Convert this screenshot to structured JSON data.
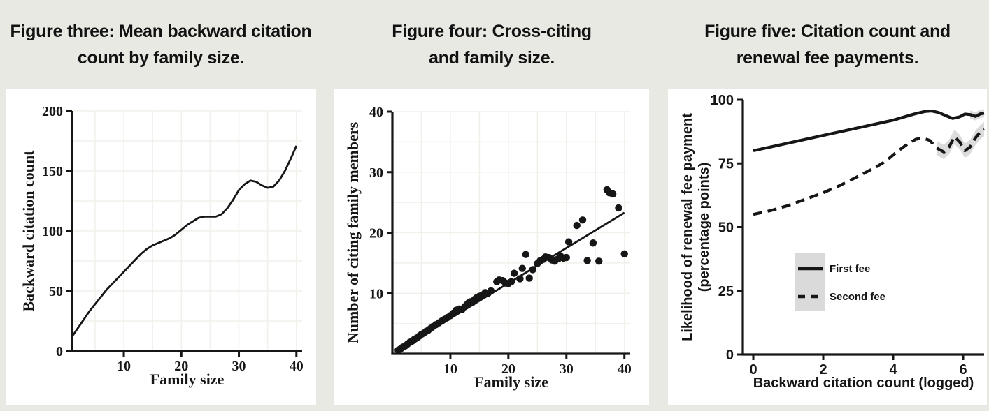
{
  "page": {
    "background_color": "#e9e9e4",
    "panel_color": "#ffffff",
    "ink_color": "#161616",
    "grid_color": "#f1f1ec",
    "band_color": "#d2d2d2",
    "legend_box_color": "#dadada"
  },
  "chart_data": [
    {
      "type": "line",
      "title": "Figure three: Mean backward citation count by family size.",
      "title_lines": [
        "Figure three: Mean backward citation",
        "count by family size."
      ],
      "xlabel": "Family size",
      "ylabel": "Backward citation count",
      "xlim": [
        1,
        41
      ],
      "ylim": [
        0,
        200
      ],
      "xticks": [
        10,
        20,
        30,
        40
      ],
      "yticks": [
        0,
        50,
        100,
        150,
        200
      ],
      "grid": "faint",
      "series": [
        {
          "name": "mean-backward-citation-curve",
          "style": "solid",
          "x": [
            1,
            2,
            3,
            4,
            5,
            6,
            7,
            8,
            9,
            10,
            11,
            12,
            13,
            14,
            15,
            16,
            17,
            18,
            19,
            20,
            21,
            22,
            23,
            24,
            25,
            26,
            27,
            28,
            29,
            30,
            31,
            32,
            33,
            34,
            35,
            36,
            37,
            38,
            39,
            40
          ],
          "y": [
            12,
            19,
            26,
            33,
            39,
            45,
            51,
            56,
            61,
            66,
            71,
            76,
            81,
            85,
            88,
            90,
            92,
            94,
            97,
            101,
            105,
            108,
            111,
            112,
            112,
            112,
            114,
            119,
            126,
            134,
            139,
            142,
            141,
            138,
            136,
            137,
            142,
            150,
            160,
            171
          ]
        }
      ]
    },
    {
      "type": "scatter",
      "title": "Figure four: Cross-citing and family size.",
      "title_lines": [
        "Figure four: Cross-citing",
        "and family size."
      ],
      "xlabel": "Family size",
      "ylabel": "Number of citing family members",
      "xlim": [
        0,
        41
      ],
      "ylim": [
        0,
        40
      ],
      "xticks": [
        10,
        20,
        30,
        40
      ],
      "yticks": [
        10,
        20,
        30,
        40
      ],
      "grid": "faint",
      "points": [
        [
          1,
          0.6
        ],
        [
          1.4,
          0.8
        ],
        [
          1.8,
          1.1
        ],
        [
          2.2,
          1.3
        ],
        [
          2.6,
          1.6
        ],
        [
          3,
          1.9
        ],
        [
          3.4,
          2.1
        ],
        [
          3.8,
          2.4
        ],
        [
          4.2,
          2.6
        ],
        [
          4.6,
          2.9
        ],
        [
          5,
          3.2
        ],
        [
          5.4,
          3.4
        ],
        [
          5.8,
          3.7
        ],
        [
          6.2,
          3.9
        ],
        [
          6.6,
          4.2
        ],
        [
          7,
          4.5
        ],
        [
          7.5,
          4.8
        ],
        [
          8,
          5.1
        ],
        [
          8.5,
          5.4
        ],
        [
          9,
          5.7
        ],
        [
          9.5,
          6
        ],
        [
          10,
          6.3
        ],
        [
          10.5,
          6.7
        ],
        [
          11,
          7.2
        ],
        [
          11.5,
          7.4
        ],
        [
          12,
          7.3
        ],
        [
          12.5,
          7.8
        ],
        [
          13,
          8.3
        ],
        [
          13.4,
          8.6
        ],
        [
          13.8,
          8.5
        ],
        [
          14.2,
          9
        ],
        [
          14.6,
          9.3
        ],
        [
          15,
          9.5
        ],
        [
          15.5,
          9.7
        ],
        [
          16,
          10.1
        ],
        [
          16.5,
          10
        ],
        [
          17,
          10.4
        ],
        [
          18,
          11.9
        ],
        [
          18.4,
          12.2
        ],
        [
          19,
          12.1
        ],
        [
          19.5,
          11.7
        ],
        [
          20,
          11.6
        ],
        [
          20.5,
          11.9
        ],
        [
          21,
          13.3
        ],
        [
          22,
          12.4
        ],
        [
          22.4,
          14.1
        ],
        [
          23,
          16.4
        ],
        [
          23.6,
          12.5
        ],
        [
          24.2,
          13.9
        ],
        [
          25,
          14.9
        ],
        [
          25.5,
          15.4
        ],
        [
          26,
          15.6
        ],
        [
          26.4,
          16
        ],
        [
          27,
          15.9
        ],
        [
          27.5,
          15.5
        ],
        [
          28,
          15.3
        ],
        [
          28.6,
          15.7
        ],
        [
          29,
          16.1
        ],
        [
          29.5,
          15.8
        ],
        [
          30,
          15.9
        ],
        [
          30.4,
          18.5
        ],
        [
          31.8,
          21.2
        ],
        [
          32.8,
          22.1
        ],
        [
          33.6,
          15.4
        ],
        [
          34.6,
          18.3
        ],
        [
          35.6,
          15.3
        ],
        [
          37,
          27.1
        ],
        [
          37.4,
          26.6
        ],
        [
          38,
          26.4
        ],
        [
          39,
          24.1
        ],
        [
          40,
          16.5
        ]
      ],
      "fit_line": {
        "x1": 1,
        "y1": 0.6,
        "x2": 40,
        "y2": 23.3
      }
    },
    {
      "type": "line",
      "title": "Figure five: Citation count and renewal fee payments.",
      "title_lines": [
        "Figure five: Citation count and",
        "renewal fee payments."
      ],
      "xlabel": "Backward citation count (logged)",
      "ylabel": "Likelihood of renewal fee payment (percentage points)",
      "ylabel_lines": [
        "Likelihood of renewal fee payment",
        "(percentage points)"
      ],
      "xlim": [
        -0.3,
        6.6
      ],
      "ylim": [
        0,
        100
      ],
      "xticks": [
        0,
        2,
        4,
        6
      ],
      "yticks": [
        0,
        25,
        50,
        75,
        100
      ],
      "grid": "none",
      "legend": {
        "entries": [
          {
            "label": "First fee",
            "style": "solid"
          },
          {
            "label": "Second fee",
            "style": "dashed"
          }
        ]
      },
      "series": [
        {
          "name": "first-fee",
          "label": "First fee",
          "style": "solid",
          "x": [
            0,
            0.5,
            1,
            1.5,
            2,
            2.5,
            3,
            3.5,
            4,
            4.3,
            4.6,
            4.9,
            5.1,
            5.3,
            5.5,
            5.7,
            5.9,
            6.05,
            6.2,
            6.35,
            6.5,
            6.6
          ],
          "y": [
            80,
            81.5,
            83,
            84.5,
            86,
            87.5,
            89,
            90.5,
            92,
            93.2,
            94.4,
            95.4,
            95.6,
            95,
            93.8,
            92.7,
            93.3,
            94.4,
            94.2,
            93.5,
            94.5,
            94.7
          ],
          "band_from_x": 6.15,
          "band_halfwidth": 1.6
        },
        {
          "name": "second-fee",
          "label": "Second fee",
          "style": "dashed",
          "x": [
            0,
            0.5,
            1,
            1.5,
            2,
            2.5,
            3,
            3.5,
            3.8,
            4.1,
            4.4,
            4.65,
            4.85,
            5.05,
            5.25,
            5.45,
            5.6,
            5.75,
            5.9,
            6.05,
            6.2,
            6.35,
            6.5,
            6.6
          ],
          "y": [
            55,
            56.5,
            58.5,
            61,
            63.5,
            66.5,
            70,
            73.5,
            76,
            79.5,
            82.5,
            84.5,
            85,
            84,
            81,
            79.5,
            81.5,
            85.5,
            83.5,
            80,
            81.5,
            85,
            87.5,
            88.5
          ],
          "band_from_x": 5.2,
          "band_halfwidth": 2.8
        }
      ]
    }
  ]
}
